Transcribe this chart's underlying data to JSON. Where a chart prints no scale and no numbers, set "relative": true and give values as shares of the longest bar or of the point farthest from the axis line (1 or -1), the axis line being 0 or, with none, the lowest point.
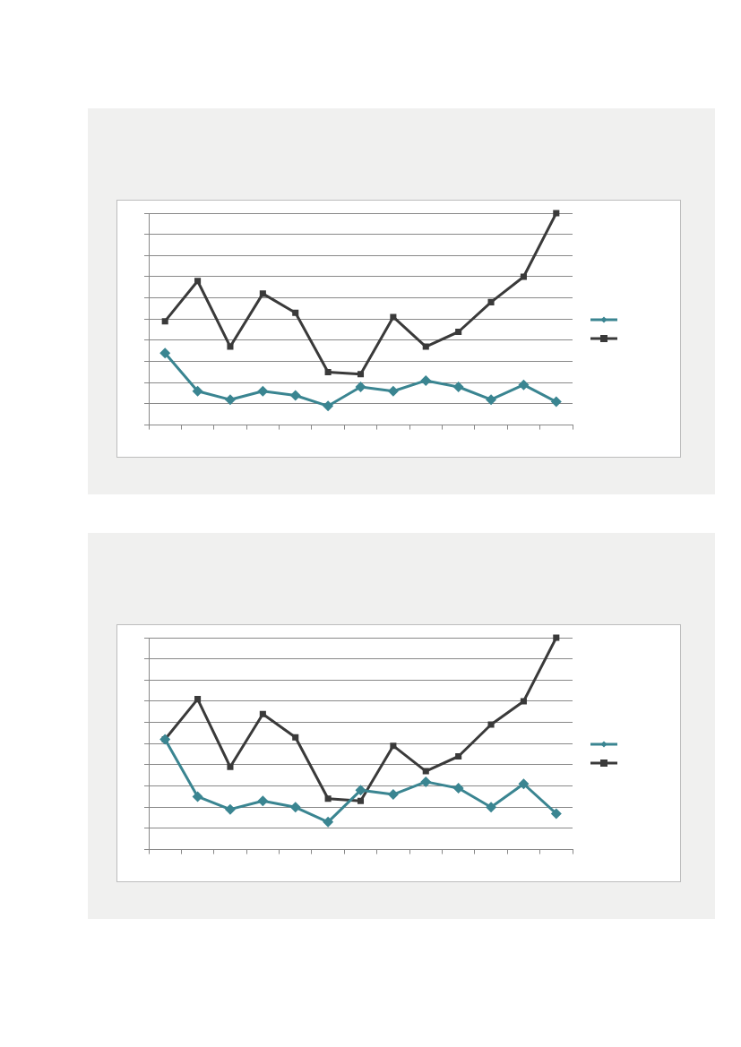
{
  "chart_data": [
    {
      "type": "line",
      "relative": true,
      "grid": "y",
      "categories": [
        null,
        null,
        null,
        null,
        null,
        null,
        null,
        null,
        null,
        null,
        null,
        null,
        null
      ],
      "series": [
        {
          "color": "#3a8591",
          "marker": "diamond",
          "values": [
            0.34,
            0.16,
            0.12,
            0.16,
            0.14,
            0.09,
            0.18,
            0.16,
            0.21,
            0.18,
            0.12,
            0.19,
            0.11
          ]
        },
        {
          "color": "#3a3a3a",
          "marker": "square",
          "values": [
            0.49,
            0.68,
            0.37,
            0.62,
            0.53,
            0.25,
            0.24,
            0.51,
            0.37,
            0.44,
            0.58,
            0.7,
            1
          ]
        }
      ]
    },
    {
      "type": "line",
      "relative": true,
      "grid": "y",
      "categories": [
        null,
        null,
        null,
        null,
        null,
        null,
        null,
        null,
        null,
        null,
        null,
        null,
        null
      ],
      "series": [
        {
          "color": "#3a8591",
          "marker": "diamond",
          "values": [
            0.52,
            0.25,
            0.19,
            0.23,
            0.2,
            0.13,
            0.28,
            0.26,
            0.32,
            0.29,
            0.2,
            0.31,
            0.17
          ]
        },
        {
          "color": "#3a3a3a",
          "marker": "square",
          "values": [
            0.52,
            0.71,
            0.39,
            0.64,
            0.53,
            0.24,
            0.23,
            0.49,
            0.37,
            0.44,
            0.59,
            0.7,
            1
          ]
        }
      ]
    }
  ]
}
